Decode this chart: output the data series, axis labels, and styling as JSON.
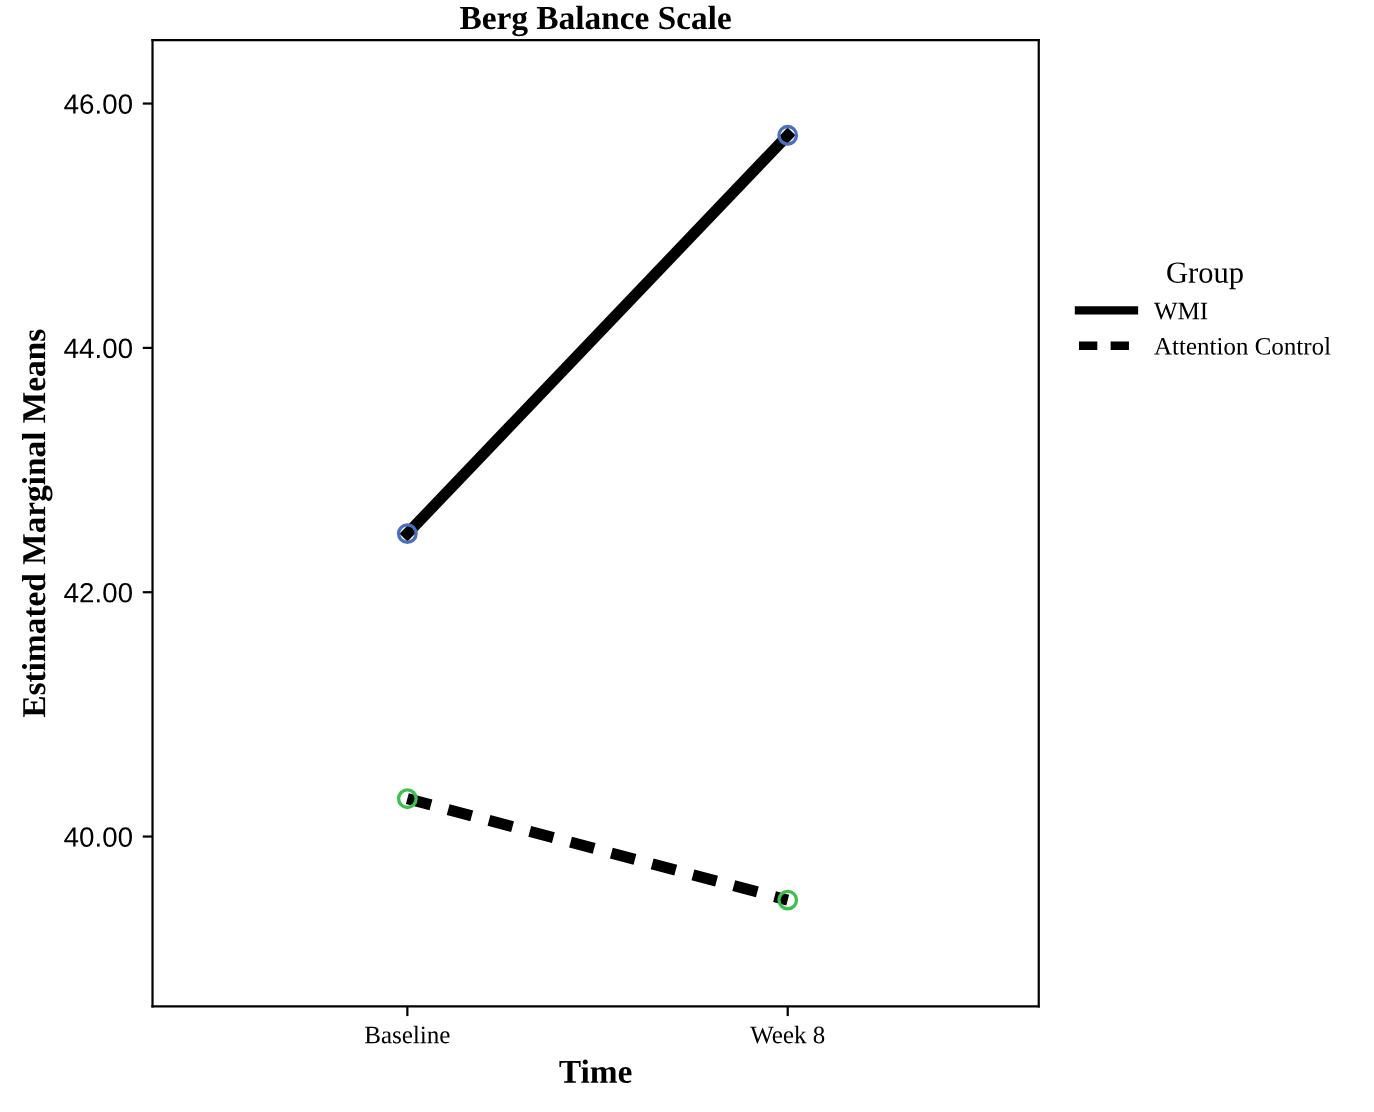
{
  "chart_data": {
    "type": "line",
    "title": "Berg Balance Scale",
    "xlabel": "Time",
    "ylabel": "Estimated Marginal Means",
    "legend_title": "Group",
    "categories": [
      "Baseline",
      "Week 8"
    ],
    "series": [
      {
        "name": "WMI",
        "color": "#000000",
        "colors": [
          "#4a6fbf",
          "#4a6fbf"
        ],
        "line_style": "solid",
        "values": [
          42.48,
          45.74
        ]
      },
      {
        "name": "Attention Control",
        "color": "#000000",
        "colors": [
          "#3fbf4f",
          "#3fbf4f"
        ],
        "line_style": "dashed",
        "values": [
          40.31,
          39.48
        ]
      }
    ],
    "marker": "circle",
    "ylim": [
      38.61,
      46.52
    ],
    "yticks": [
      {
        "value": 40,
        "label": "40.00"
      },
      {
        "value": 42,
        "label": "42.00"
      },
      {
        "value": 44,
        "label": "44.00"
      },
      {
        "value": 46,
        "label": "46.00"
      }
    ],
    "grid": false,
    "legend": "right"
  }
}
